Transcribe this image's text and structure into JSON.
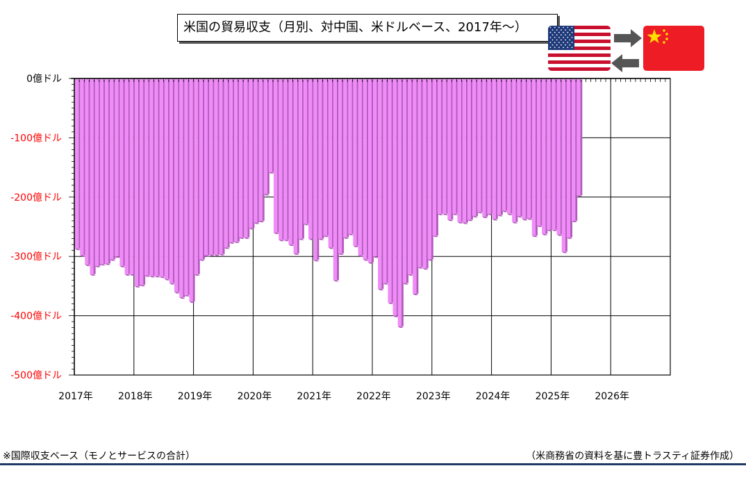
{
  "title": "米国の貿易収支（月別、対中国、米ドルベース、2017年～）",
  "footnote_left": "※国際収支ベース（モノとサービスの合計）",
  "footnote_right": "（米商務省の資料を基に豊トラスティ証券作成）",
  "colors": {
    "bar_fill": "#f08cf8",
    "bar_side": "#b35bbd",
    "axis_negative_label": "#ff0000",
    "axis_zero_label": "#000000",
    "grid": "#000000",
    "bottom_rule": "#1f3864"
  },
  "icons": {
    "left_flag": "us-flag-icon",
    "right_flag": "china-flag-icon",
    "top_arrow": "arrow-right-icon",
    "bottom_arrow": "arrow-left-icon"
  },
  "chart_data": {
    "type": "bar",
    "title": "米国の貿易収支（月別、対中国、米ドルベース、2017年～）",
    "unit": "億ドル",
    "y_ticks": [
      {
        "value": 0,
        "label": "0億ドル"
      },
      {
        "value": -100,
        "label": "-100億ドル"
      },
      {
        "value": -200,
        "label": "-200億ドル"
      },
      {
        "value": -300,
        "label": "-300億ドル"
      },
      {
        "value": -400,
        "label": "-400億ドル"
      },
      {
        "value": -500,
        "label": "-500億ドル"
      }
    ],
    "x_ticks": [
      "2017年",
      "2018年",
      "2019年",
      "2020年",
      "2021年",
      "2022年",
      "2023年",
      "2024年",
      "2025年",
      "2026年"
    ],
    "ylim": [
      -500,
      0
    ],
    "grid": true,
    "start": "2017-01",
    "x_span_months": 120,
    "values": [
      -287,
      -298,
      -314,
      -330,
      -316,
      -313,
      -312,
      -305,
      -300,
      -316,
      -330,
      -330,
      -350,
      -348,
      -332,
      -333,
      -333,
      -334,
      -338,
      -345,
      -360,
      -369,
      -365,
      -376,
      -330,
      -305,
      -298,
      -297,
      -297,
      -296,
      -285,
      -276,
      -275,
      -268,
      -268,
      -252,
      -243,
      -240,
      -195,
      -158,
      -260,
      -272,
      -272,
      -280,
      -295,
      -270,
      -245,
      -270,
      -306,
      -270,
      -265,
      -285,
      -340,
      -295,
      -268,
      -262,
      -282,
      -298,
      -305,
      -310,
      -300,
      -355,
      -345,
      -378,
      -400,
      -418,
      -345,
      -330,
      -363,
      -318,
      -320,
      -305,
      -265,
      -228,
      -228,
      -238,
      -228,
      -242,
      -243,
      -238,
      -232,
      -225,
      -233,
      -228,
      -237,
      -230,
      -223,
      -228,
      -242,
      -232,
      -237,
      -236,
      -265,
      -248,
      -262,
      -255,
      -255,
      -263,
      -292,
      -268,
      -240,
      -197
    ]
  }
}
